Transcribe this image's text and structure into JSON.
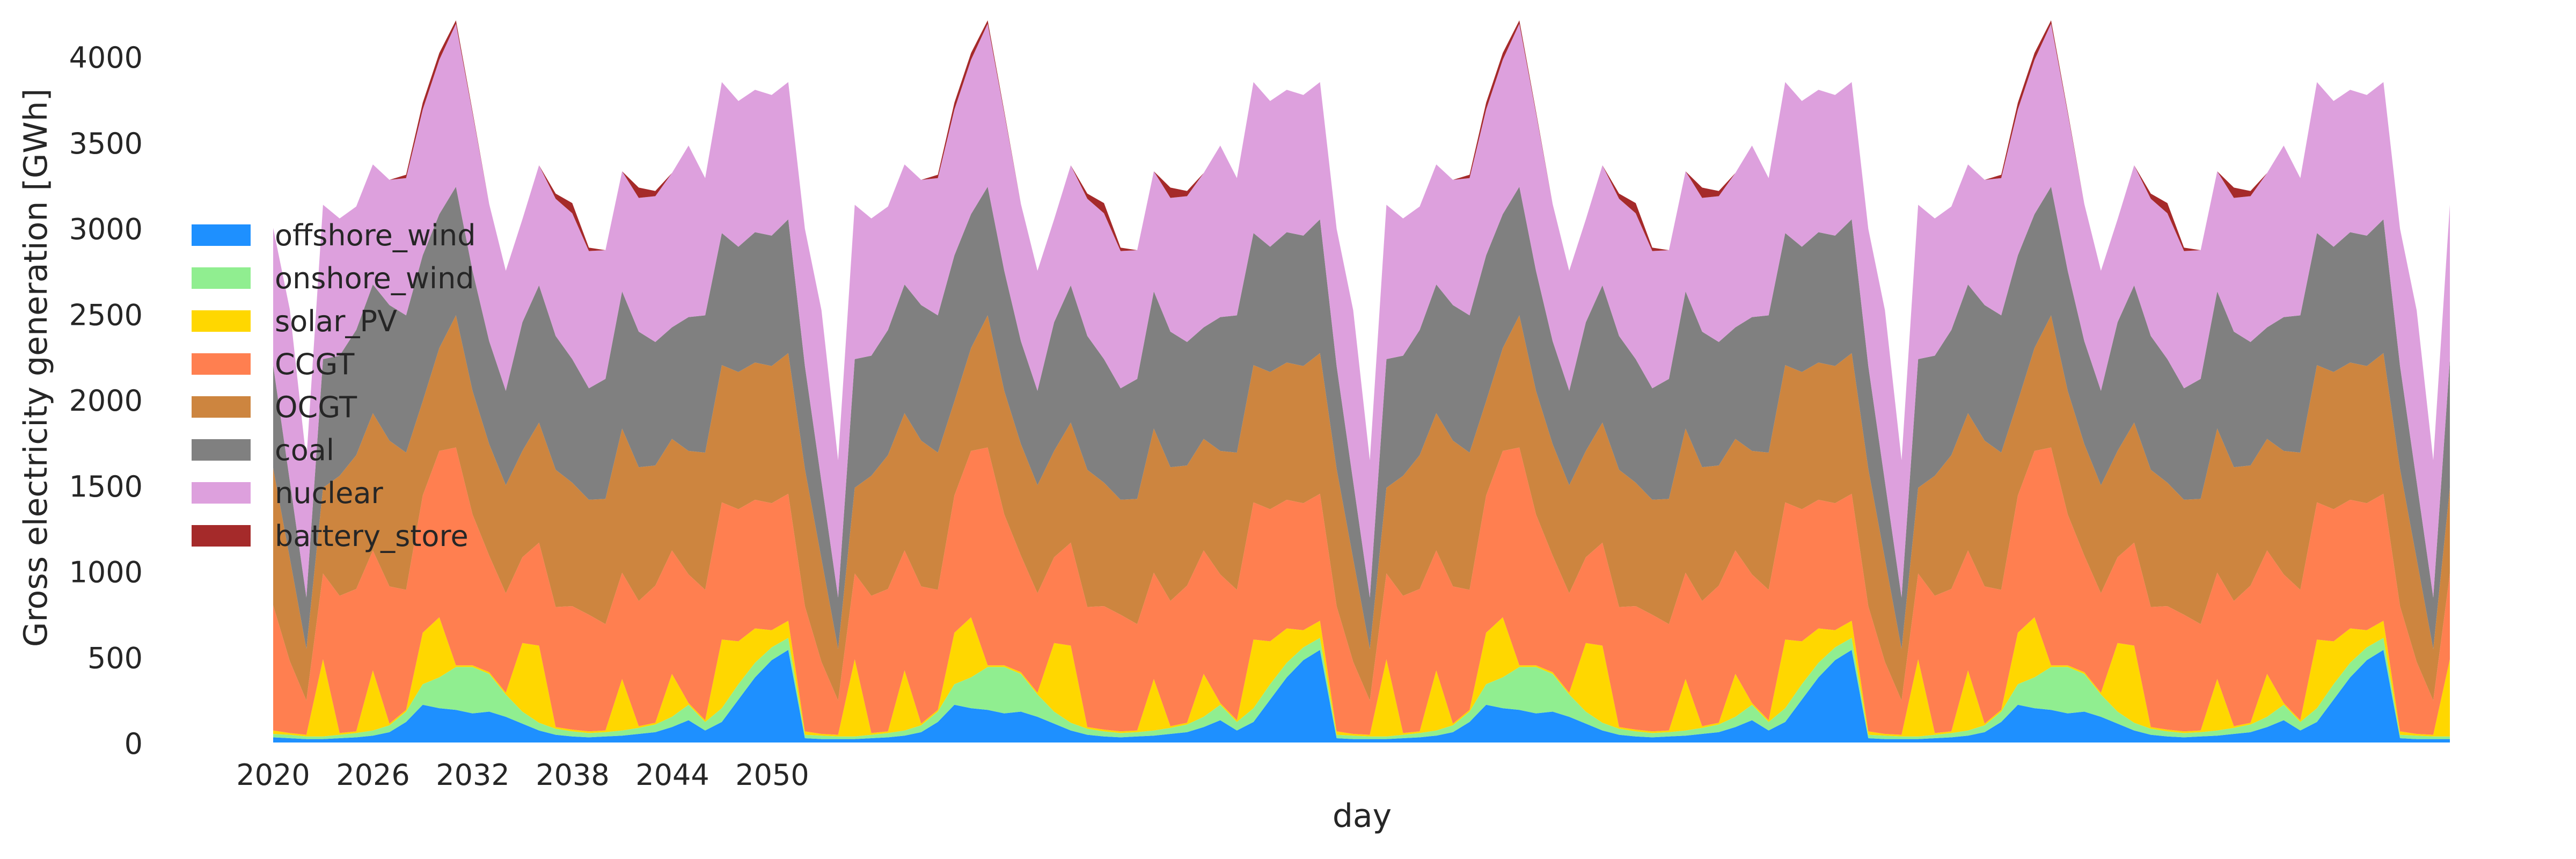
{
  "chart_data": {
    "type": "area",
    "stacked": true,
    "xlabel": "day",
    "ylabel": "Gross electricity generation [GWh]",
    "ylim": [
      0,
      4000
    ],
    "yticks": [
      0,
      500,
      1000,
      1500,
      2000,
      2500,
      3000,
      3500,
      4000
    ],
    "xticks": [
      "2020",
      "2026",
      "2032",
      "2038",
      "2044",
      "2050"
    ],
    "grid": false,
    "legend_position": "left",
    "x_index": [
      0,
      1,
      2,
      3,
      4,
      5,
      6,
      7,
      8,
      9,
      10,
      11,
      12,
      13,
      14,
      15,
      16,
      17,
      18,
      19,
      20,
      21,
      22,
      23,
      24,
      25,
      26,
      27,
      28,
      29,
      30,
      31,
      32,
      33,
      34,
      35,
      36,
      37,
      38,
      39,
      40,
      41,
      42,
      43,
      44,
      45,
      46,
      47,
      48,
      49,
      50,
      51,
      52,
      53,
      54,
      55,
      56,
      57,
      58,
      59,
      60,
      61,
      62,
      63,
      64,
      65,
      66,
      67,
      68,
      69,
      70,
      71,
      72,
      73,
      74,
      75,
      76,
      77,
      78,
      79,
      80,
      81,
      82,
      83,
      84,
      85,
      86,
      87,
      88,
      89,
      90,
      91,
      92,
      93,
      94,
      95,
      96,
      97,
      98,
      99,
      100,
      101,
      102,
      103,
      104,
      105,
      106,
      107,
      108,
      109,
      110,
      111,
      112,
      113,
      114,
      115,
      116,
      117,
      118,
      119,
      120,
      121,
      122,
      123,
      124,
      125,
      126,
      127,
      128,
      129,
      130,
      131
    ],
    "series": [
      {
        "name": "offshore_wind",
        "color": "#1e90ff",
        "values": [
          30,
          25,
          20,
          20,
          25,
          30,
          40,
          60,
          120,
          220,
          200,
          190,
          170,
          180,
          150,
          110,
          70,
          45,
          35,
          30,
          35,
          40,
          50,
          60,
          90,
          130,
          70,
          120,
          250,
          380,
          480,
          540,
          25,
          20,
          20,
          20,
          25,
          30,
          40,
          60,
          120,
          220,
          200,
          190,
          170,
          180,
          150,
          110,
          70,
          45,
          35,
          30,
          35,
          40,
          50,
          60,
          90,
          130,
          70,
          120,
          250,
          380,
          480,
          540,
          25,
          20,
          20,
          20,
          25,
          30,
          40,
          60,
          120,
          220,
          200,
          190,
          170,
          180,
          150,
          110,
          70,
          45,
          35,
          30,
          35,
          40,
          50,
          60,
          90,
          130,
          70,
          120,
          250,
          380,
          480,
          540,
          25,
          20,
          20,
          20,
          25,
          30,
          40,
          60,
          120,
          220,
          200,
          190,
          170,
          180,
          150,
          110,
          70,
          45,
          35,
          30,
          35,
          40,
          50,
          60,
          90,
          130,
          70,
          120,
          250,
          380,
          480,
          540,
          25,
          20,
          20,
          20
        ]
      },
      {
        "name": "onshore_wind",
        "color": "#90ee90",
        "values": [
          20,
          20,
          15,
          15,
          20,
          25,
          30,
          40,
          60,
          120,
          180,
          250,
          270,
          220,
          130,
          70,
          45,
          35,
          30,
          25,
          25,
          30,
          35,
          45,
          60,
          90,
          50,
          80,
          90,
          85,
          75,
          70,
          20,
          20,
          15,
          15,
          20,
          25,
          30,
          40,
          60,
          120,
          180,
          250,
          270,
          220,
          130,
          70,
          45,
          35,
          30,
          25,
          25,
          30,
          35,
          45,
          60,
          90,
          50,
          80,
          90,
          85,
          75,
          70,
          20,
          20,
          15,
          15,
          20,
          25,
          30,
          40,
          60,
          120,
          180,
          250,
          270,
          220,
          130,
          70,
          45,
          35,
          30,
          25,
          25,
          30,
          35,
          45,
          60,
          90,
          50,
          80,
          90,
          85,
          75,
          70,
          20,
          20,
          15,
          15,
          20,
          25,
          30,
          40,
          60,
          120,
          180,
          250,
          270,
          220,
          130,
          70,
          45,
          35,
          30,
          25,
          25,
          30,
          35,
          45,
          60,
          90,
          50,
          80,
          90,
          85,
          75,
          70,
          20,
          20,
          15,
          15
        ]
      },
      {
        "name": "solar_PV",
        "color": "#ffd700",
        "values": [
          20,
          10,
          10,
          450,
          10,
          10,
          350,
          10,
          10,
          300,
          350,
          10,
          10,
          10,
          10,
          400,
          450,
          10,
          10,
          10,
          10,
          300,
          10,
          10,
          250,
          10,
          10,
          400,
          250,
          200,
          100,
          100,
          20,
          10,
          10,
          450,
          10,
          10,
          350,
          10,
          10,
          300,
          350,
          10,
          10,
          10,
          10,
          400,
          450,
          10,
          10,
          10,
          10,
          300,
          10,
          10,
          250,
          10,
          10,
          400,
          250,
          200,
          100,
          100,
          20,
          10,
          10,
          450,
          10,
          10,
          350,
          10,
          10,
          300,
          350,
          10,
          10,
          10,
          10,
          400,
          450,
          10,
          10,
          10,
          10,
          300,
          10,
          10,
          250,
          10,
          10,
          400,
          250,
          200,
          100,
          100,
          20,
          10,
          10,
          450,
          10,
          10,
          350,
          10,
          10,
          300,
          350,
          10,
          10,
          10,
          10,
          400,
          450,
          10,
          10,
          10,
          10,
          300,
          10,
          10,
          250,
          10,
          10,
          400,
          250,
          200,
          100,
          100,
          20,
          10,
          10,
          450
        ]
      },
      {
        "name": "CCGT",
        "color": "#ff7f50",
        "values": [
          730,
          420,
          200,
          500,
          800,
          830,
          700,
          800,
          700,
          800,
          970,
          1270,
          880,
          680,
          580,
          500,
          600,
          700,
          720,
          680,
          620,
          620,
          730,
          800,
          720,
          750,
          760,
          800,
          770,
          750,
          740,
          740,
          730,
          420,
          200,
          500,
          800,
          830,
          700,
          800,
          700,
          800,
          970,
          1270,
          880,
          680,
          580,
          500,
          600,
          700,
          720,
          680,
          620,
          620,
          730,
          800,
          720,
          750,
          760,
          800,
          770,
          750,
          740,
          740,
          730,
          420,
          200,
          500,
          800,
          830,
          700,
          800,
          700,
          800,
          970,
          1270,
          880,
          680,
          580,
          500,
          600,
          700,
          720,
          680,
          620,
          620,
          730,
          800,
          720,
          750,
          760,
          800,
          770,
          750,
          740,
          740,
          730,
          420,
          200,
          500,
          800,
          830,
          700,
          800,
          700,
          800,
          970,
          1270,
          880,
          680,
          580,
          500,
          600,
          700,
          720,
          680,
          620,
          620,
          730,
          800,
          720,
          750,
          760,
          800,
          770,
          750,
          740,
          740,
          730,
          420,
          200,
          500
        ]
      },
      {
        "name": "OCGT",
        "color": "#cd853f",
        "values": [
          800,
          600,
          300,
          500,
          700,
          780,
          800,
          850,
          800,
          550,
          600,
          770,
          720,
          650,
          630,
          620,
          700,
          800,
          720,
          670,
          730,
          840,
          780,
          700,
          650,
          720,
          800,
          800,
          800,
          800,
          800,
          820,
          800,
          600,
          300,
          500,
          700,
          780,
          800,
          850,
          800,
          550,
          600,
          770,
          720,
          650,
          630,
          620,
          700,
          800,
          720,
          670,
          730,
          840,
          780,
          700,
          650,
          720,
          800,
          800,
          800,
          800,
          800,
          820,
          800,
          600,
          300,
          500,
          700,
          780,
          800,
          850,
          800,
          550,
          600,
          770,
          720,
          650,
          630,
          620,
          700,
          800,
          720,
          670,
          730,
          840,
          780,
          700,
          650,
          720,
          800,
          800,
          800,
          800,
          800,
          820,
          800,
          600,
          300,
          500,
          700,
          780,
          800,
          850,
          800,
          550,
          600,
          770,
          720,
          650,
          630,
          620,
          700,
          800,
          720,
          670,
          730,
          840,
          780,
          700,
          650,
          720,
          800,
          800,
          800,
          800,
          800,
          820,
          800,
          600,
          300,
          500
        ]
      },
      {
        "name": "coal",
        "color": "#808080",
        "values": [
          600,
          450,
          300,
          750,
          700,
          730,
          750,
          790,
          800,
          850,
          780,
          750,
          700,
          600,
          550,
          750,
          800,
          780,
          720,
          650,
          700,
          800,
          790,
          720,
          650,
          780,
          800,
          770,
          730,
          760,
          760,
          780,
          600,
          450,
          300,
          750,
          700,
          730,
          750,
          790,
          800,
          850,
          780,
          750,
          700,
          600,
          550,
          750,
          800,
          780,
          720,
          650,
          700,
          800,
          790,
          720,
          650,
          780,
          800,
          770,
          730,
          760,
          760,
          780,
          600,
          450,
          300,
          750,
          700,
          730,
          750,
          790,
          800,
          850,
          780,
          750,
          700,
          600,
          550,
          750,
          800,
          780,
          720,
          650,
          700,
          800,
          790,
          720,
          650,
          780,
          800,
          770,
          730,
          760,
          760,
          780,
          600,
          450,
          300,
          750,
          700,
          730,
          750,
          790,
          800,
          850,
          780,
          750,
          700,
          600,
          550,
          750,
          800,
          780,
          720,
          650,
          700,
          800,
          790,
          720,
          650,
          780,
          800,
          770,
          730,
          760,
          760,
          780,
          600,
          450,
          300,
          750
        ]
      },
      {
        "name": "nuclear",
        "color": "#dda0dd",
        "values": [
          800,
          1000,
          800,
          900,
          800,
          720,
          700,
          730,
          800,
          850,
          900,
          950,
          920,
          800,
          700,
          600,
          700,
          800,
          850,
          800,
          750,
          700,
          780,
          850,
          900,
          1000,
          800,
          880,
          850,
          830,
          820,
          800,
          800,
          1000,
          800,
          900,
          800,
          720,
          700,
          730,
          800,
          850,
          900,
          950,
          920,
          800,
          700,
          600,
          700,
          800,
          850,
          800,
          750,
          700,
          780,
          850,
          900,
          1000,
          800,
          880,
          850,
          830,
          820,
          800,
          800,
          1000,
          800,
          900,
          800,
          720,
          700,
          730,
          800,
          850,
          900,
          950,
          920,
          800,
          700,
          600,
          700,
          800,
          850,
          800,
          750,
          700,
          780,
          850,
          900,
          1000,
          800,
          880,
          850,
          830,
          820,
          800,
          800,
          1000,
          800,
          900,
          800,
          720,
          700,
          730,
          800,
          850,
          900,
          950,
          920,
          800,
          700,
          600,
          700,
          800,
          850,
          800,
          750,
          700,
          780,
          850,
          900,
          1000,
          800,
          880,
          850,
          830,
          820,
          800,
          800,
          1000,
          800,
          900
        ]
      },
      {
        "name": "battery_store",
        "color": "#a52a2a",
        "values": [
          0,
          0,
          0,
          0,
          0,
          0,
          0,
          0,
          20,
          40,
          40,
          20,
          10,
          0,
          0,
          0,
          0,
          30,
          60,
          20,
          0,
          0,
          60,
          30,
          0,
          0,
          0,
          0,
          0,
          0,
          0,
          0,
          0,
          0,
          0,
          0,
          0,
          0,
          0,
          0,
          20,
          40,
          40,
          20,
          10,
          0,
          0,
          0,
          0,
          30,
          60,
          20,
          0,
          0,
          60,
          30,
          0,
          0,
          0,
          0,
          0,
          0,
          0,
          0,
          0,
          0,
          0,
          0,
          0,
          0,
          0,
          0,
          20,
          40,
          40,
          20,
          10,
          0,
          0,
          0,
          0,
          30,
          60,
          20,
          0,
          0,
          60,
          30,
          0,
          0,
          0,
          0,
          0,
          0,
          0,
          0,
          0,
          0,
          0,
          0,
          0,
          0,
          0,
          0,
          20,
          40,
          40,
          20,
          10,
          0,
          0,
          0,
          0,
          30,
          60,
          20,
          0,
          0,
          60,
          30,
          0,
          0,
          0,
          0,
          0,
          0,
          0,
          0,
          0,
          0,
          0,
          0
        ]
      }
    ]
  }
}
